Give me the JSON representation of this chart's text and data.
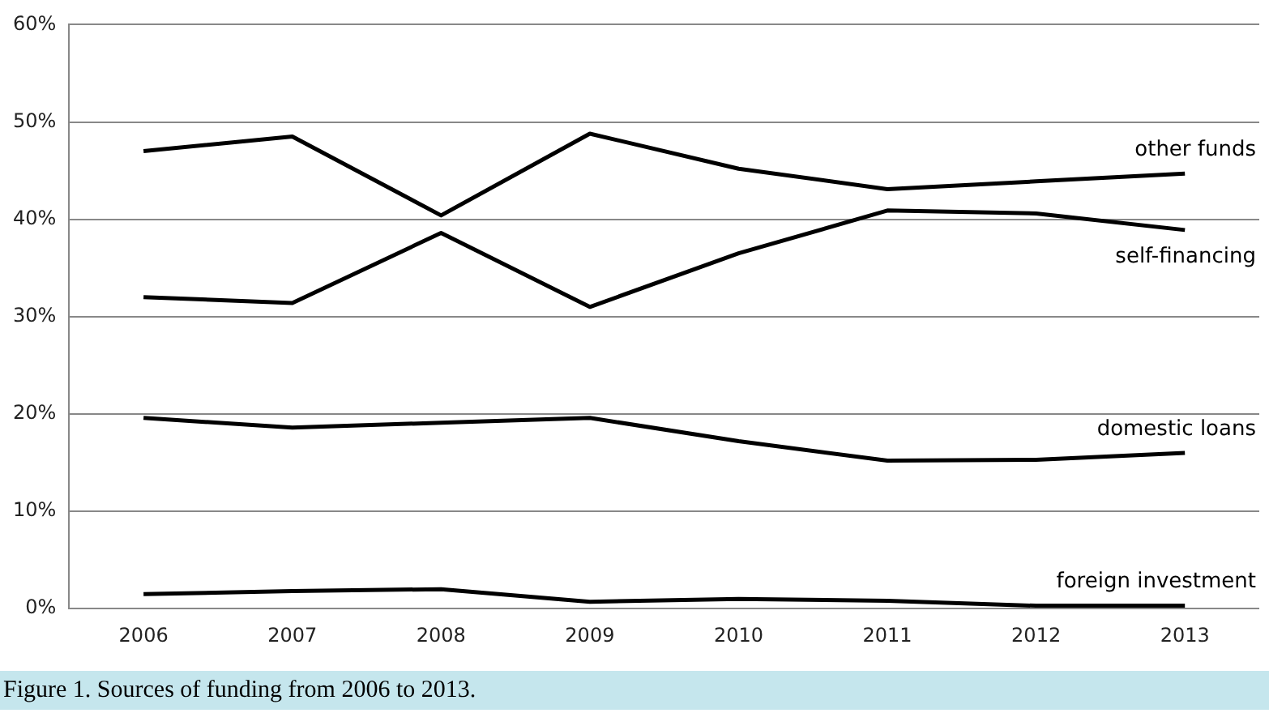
{
  "chart_data": {
    "type": "line",
    "categories": [
      "2006",
      "2007",
      "2008",
      "2009",
      "2010",
      "2011",
      "2012",
      "2013"
    ],
    "series": [
      {
        "name": "other funds",
        "color": "#000000",
        "values": [
          47.0,
          48.5,
          40.4,
          48.8,
          45.2,
          43.1,
          43.9,
          44.7
        ]
      },
      {
        "name": "self-financing",
        "color": "#000000",
        "values": [
          32.0,
          31.4,
          38.6,
          31.0,
          36.5,
          40.9,
          40.6,
          38.9
        ]
      },
      {
        "name": "domestic loans",
        "color": "#000000",
        "values": [
          19.6,
          18.6,
          19.1,
          19.6,
          17.2,
          15.2,
          15.3,
          16.0
        ]
      },
      {
        "name": "foreign investment",
        "color": "#000000",
        "values": [
          1.5,
          1.8,
          2.0,
          0.7,
          1.0,
          0.8,
          0.3,
          0.3
        ]
      }
    ],
    "ylim": [
      0,
      60
    ],
    "yticks": [
      {
        "value": 0,
        "label": "0%"
      },
      {
        "value": 10,
        "label": "10%"
      },
      {
        "value": 20,
        "label": "20%"
      },
      {
        "value": 30,
        "label": "30%"
      },
      {
        "value": 40,
        "label": "40%"
      },
      {
        "value": 50,
        "label": "50%"
      },
      {
        "value": 60,
        "label": "60%"
      }
    ],
    "grid": "y",
    "legend": false,
    "marker": "none",
    "line_style": "solid",
    "annotations": [
      "Figure 1. Sources of funding from 2006 to 2013."
    ]
  }
}
